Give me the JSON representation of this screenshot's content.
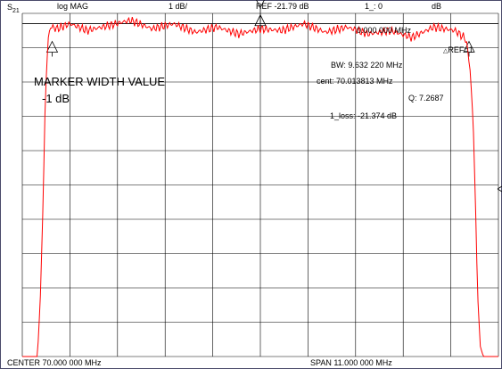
{
  "header": {
    "channel": "S",
    "channel_sub": "21",
    "format": "log MAG",
    "scale": "1 dB/",
    "reference": "REF -21.79 dB",
    "marker_status": "1_: 0",
    "marker_status_unit": "dB"
  },
  "readouts": {
    "marker_freq": "0.000 000 MHz",
    "ref_marker": "REF=1",
    "bw": "BW:   9.632 220 MHz",
    "cent": "cent:  70.013813 MHz",
    "q": "Q: 7.2687",
    "loss": "1_loss: -21.374 dB"
  },
  "annotation": {
    "title": "MARKER WIDTH VALUE",
    "value": "-1 dB"
  },
  "footer": {
    "center": "CENTER   70.000 000 MHz",
    "span": "SPAN    11.000 000 MHz"
  },
  "colors": {
    "trace": "#ff0000",
    "grid": "#000000",
    "border": "#4a4a6a"
  },
  "chart_data": {
    "type": "line",
    "x_unit": "MHz",
    "xlim": [
      64.5,
      75.5
    ],
    "ylim": [
      -10,
      0
    ],
    "grid": true,
    "divisions": {
      "x": 10,
      "y": 10
    },
    "series": [
      {
        "x": [
          64.5,
          64.85,
          64.92,
          64.98,
          65.02,
          65.06,
          65.1,
          65.15,
          65.3,
          65.6,
          66.0,
          66.5,
          67.0,
          67.5,
          68.0,
          68.5,
          69.0,
          69.5,
          70.0,
          70.5,
          71.0,
          71.5,
          72.0,
          72.5,
          73.0,
          73.5,
          74.0,
          74.5,
          74.75,
          74.85,
          74.92,
          74.97,
          75.02,
          75.08,
          75.15,
          75.5
        ],
        "y": [
          -10.0,
          -10.0,
          -8.2,
          -5.5,
          -3.1,
          -1.6,
          -0.75,
          -0.38,
          -0.45,
          -0.3,
          -0.5,
          -0.35,
          -0.2,
          -0.45,
          -0.3,
          -0.55,
          -0.4,
          -0.6,
          -0.45,
          -0.5,
          -0.3,
          -0.55,
          -0.4,
          -0.6,
          -0.5,
          -0.7,
          -0.4,
          -0.5,
          -0.75,
          -1.7,
          -3.3,
          -5.6,
          -8.2,
          -9.7,
          -10.0,
          -10.0
        ]
      }
    ],
    "markers": [
      {
        "id": "1",
        "x": 70.0,
        "y": -0.15,
        "type": "active"
      },
      {
        "id": "2",
        "x": 65.19,
        "y": -1.0,
        "type": "bw-lower"
      },
      {
        "id": "3",
        "x": 74.82,
        "y": -1.0,
        "type": "bw-upper"
      }
    ],
    "ref_line_y": -0.3
  }
}
